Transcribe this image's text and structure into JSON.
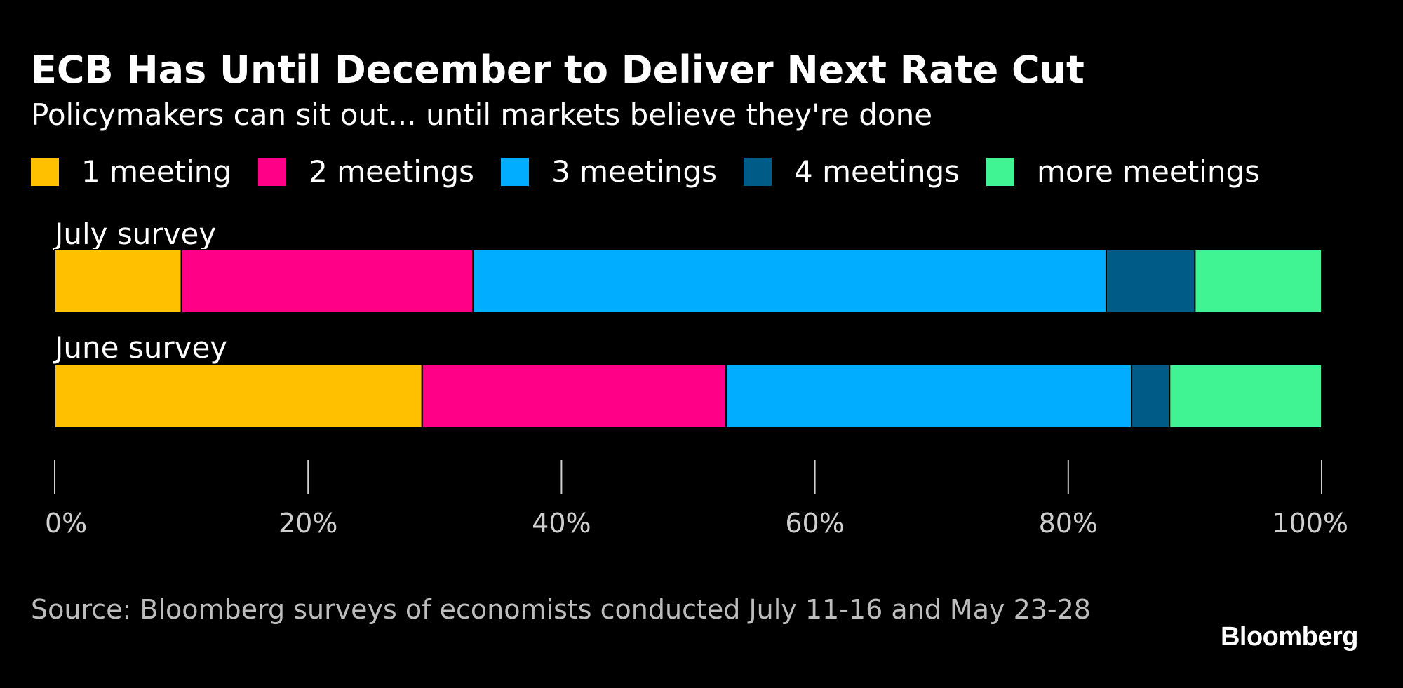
{
  "chart_data": {
    "type": "bar",
    "orientation": "horizontal",
    "stacked": true,
    "title": "ECB Has Until December to Deliver Next Rate Cut",
    "subtitle": "Policymakers can sit out... until markets believe they're done",
    "categories": [
      "July survey",
      "June survey"
    ],
    "series": [
      {
        "name": "1 meeting",
        "color": "#ffc000",
        "values": [
          10,
          29
        ]
      },
      {
        "name": "2 meetings",
        "color": "#ff0087",
        "values": [
          23,
          24
        ]
      },
      {
        "name": "3 meetings",
        "color": "#00adff",
        "values": [
          50,
          32
        ]
      },
      {
        "name": "4 meetings",
        "color": "#005c87",
        "values": [
          7,
          3
        ]
      },
      {
        "name": "more meetings",
        "color": "#40f393",
        "values": [
          10,
          12
        ]
      }
    ],
    "xlim": [
      0,
      100
    ],
    "x_ticks": [
      0,
      20,
      40,
      60,
      80,
      100
    ],
    "x_tick_labels": [
      "0%",
      "20%",
      "40%",
      "60%",
      "80%",
      "100%"
    ],
    "legend_position": "top",
    "grid": false
  },
  "source": "Source: Bloomberg surveys of economists conducted July 11-16 and May 23-28",
  "logo": "Bloomberg"
}
